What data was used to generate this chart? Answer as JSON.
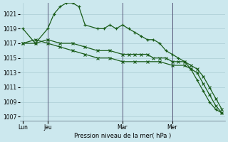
{
  "bg_color": "#cce8ee",
  "grid_color": "#aaccd4",
  "line_color": "#1a5c1a",
  "xlabel": "Pression niveau de la mer( hPa )",
  "ylim": [
    1006.5,
    1022.5
  ],
  "yticks": [
    1007,
    1009,
    1011,
    1013,
    1015,
    1017,
    1019,
    1021
  ],
  "xtick_labels": [
    "Lun",
    "Jeu",
    "Mar",
    "Mer"
  ],
  "xtick_positions": [
    0,
    4,
    16,
    24
  ],
  "total_points": 33,
  "series1_x": [
    0,
    2,
    4,
    5,
    6,
    7,
    8,
    9,
    10,
    12,
    13,
    14,
    15,
    16,
    17,
    18,
    19,
    20,
    21,
    22,
    23,
    24,
    25,
    26,
    27,
    28,
    29,
    30,
    31,
    32
  ],
  "series1_y": [
    1019,
    1017,
    1019,
    1021,
    1022,
    1022.5,
    1022.5,
    1022,
    1019.5,
    1019,
    1019,
    1019.5,
    1019,
    1019.5,
    1019,
    1018.5,
    1018,
    1017.5,
    1017.5,
    1017,
    1016,
    1015.5,
    1015,
    1014.5,
    1013.5,
    1012,
    1010.5,
    1009,
    1008,
    1007.5
  ],
  "series2_x": [
    0,
    2,
    4,
    6,
    8,
    10,
    12,
    14,
    16,
    17,
    18,
    19,
    20,
    21,
    22,
    23,
    24,
    25,
    26,
    27,
    28,
    29,
    30,
    31,
    32
  ],
  "series2_y": [
    1017,
    1017,
    1017.5,
    1017,
    1017,
    1016.5,
    1016,
    1016,
    1015.5,
    1015.5,
    1015.5,
    1015.5,
    1015.5,
    1015,
    1015,
    1015,
    1014.5,
    1014.5,
    1014.5,
    1014,
    1013.5,
    1012.5,
    1011,
    1009.5,
    1008
  ],
  "series3_x": [
    0,
    2,
    4,
    6,
    8,
    10,
    12,
    14,
    16,
    18,
    20,
    22,
    24,
    26,
    27,
    28,
    29,
    30,
    31,
    32
  ],
  "series3_y": [
    1017,
    1017.5,
    1017,
    1016.5,
    1016,
    1015.5,
    1015,
    1015,
    1014.5,
    1014.5,
    1014.5,
    1014.5,
    1014,
    1014,
    1013.5,
    1013,
    1011.5,
    1010,
    1008.5,
    1007.5
  ],
  "vline_positions": [
    4,
    16,
    24
  ],
  "vline_color": "#555577"
}
